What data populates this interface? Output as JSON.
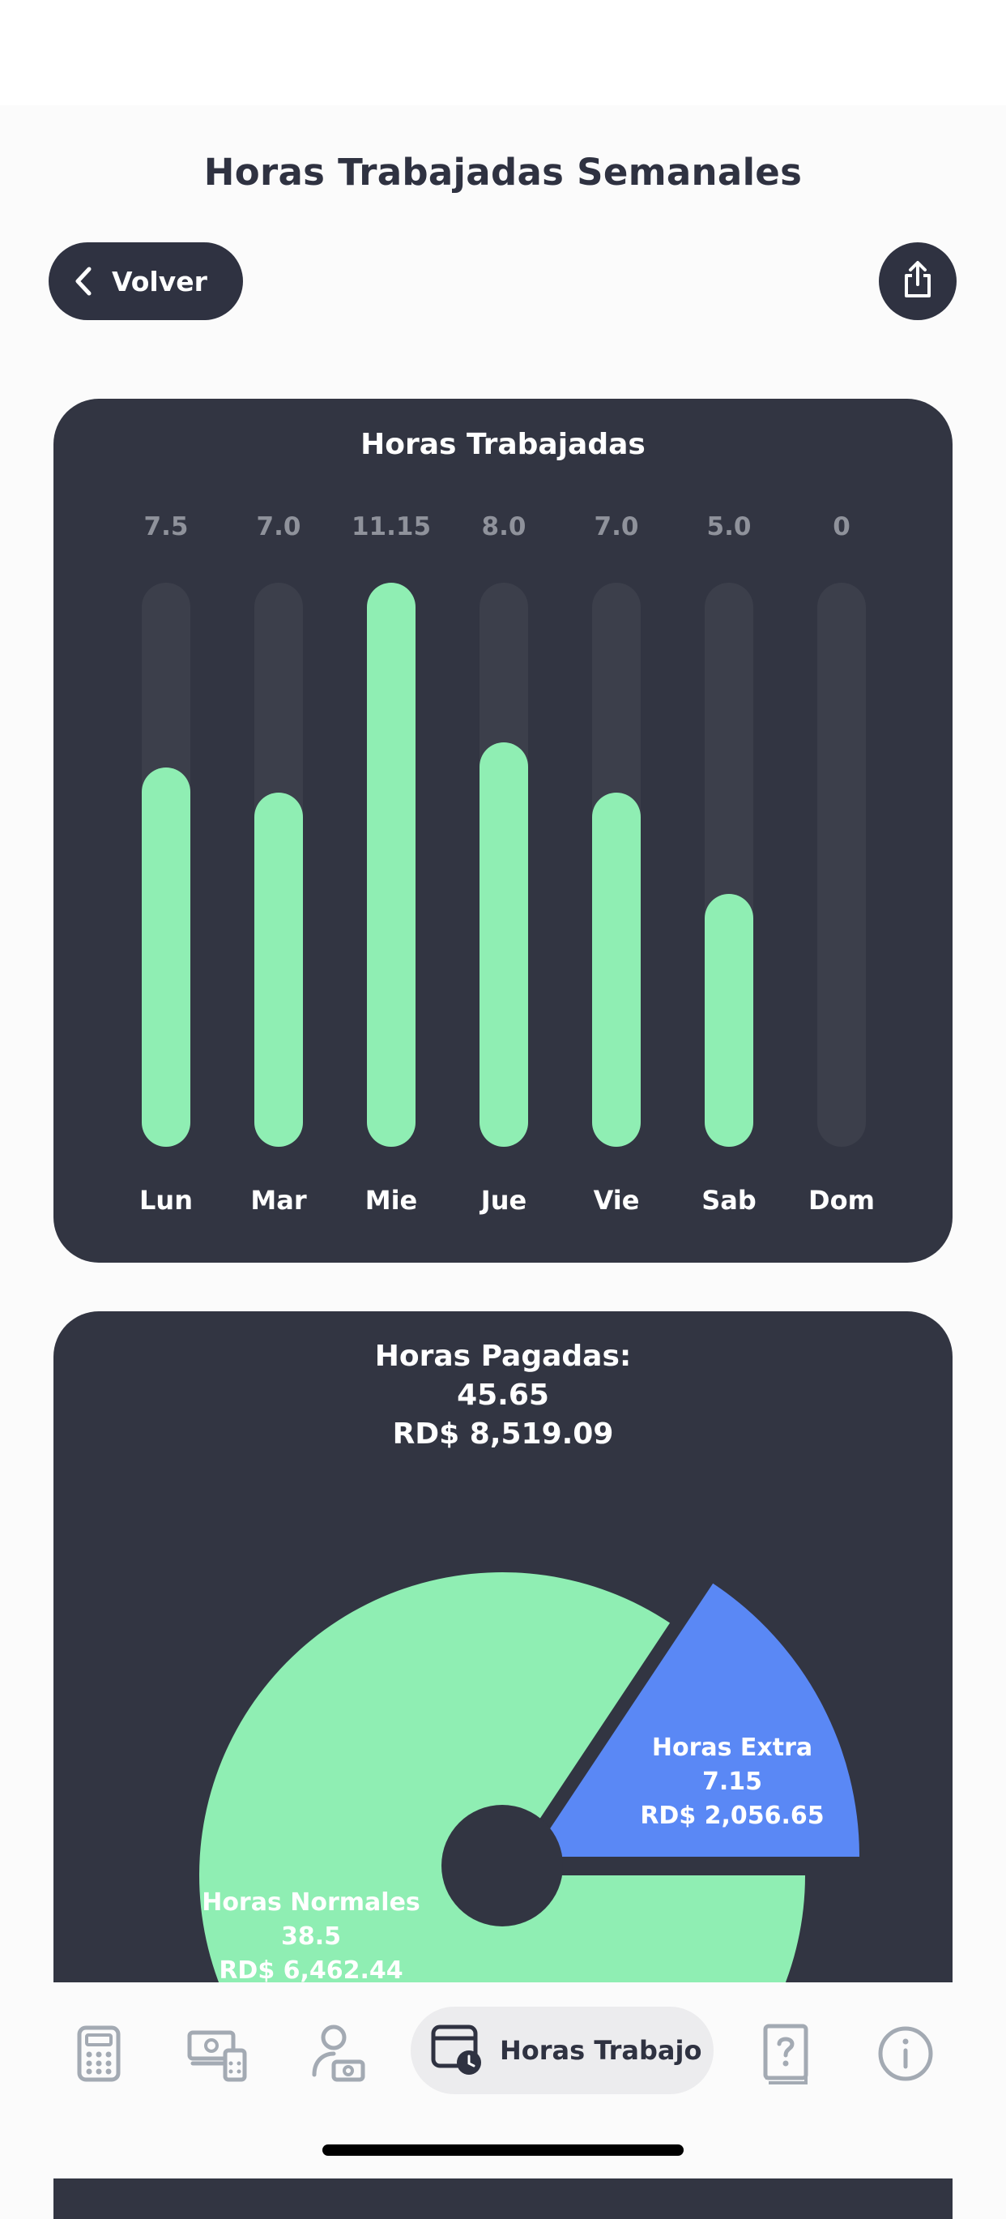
{
  "header": {
    "title": "Horas Trabajadas Semanales",
    "back_label": "Volver",
    "back_icon": "chevron-left-icon",
    "share_icon": "share-icon"
  },
  "colors": {
    "card_bg": "#323542",
    "bar_fill": "#8feeb3",
    "bar_track": "#3c3f4b",
    "extra": "#5a88f5",
    "text_dark": "#2f3241"
  },
  "bars_card": {
    "title": "Horas Trabajadas"
  },
  "chart_data": [
    {
      "type": "bar",
      "title": "Horas Trabajadas",
      "categories": [
        "Lun",
        "Mar",
        "Mie",
        "Jue",
        "Vie",
        "Sab",
        "Dom"
      ],
      "values": [
        7.5,
        7.0,
        11.15,
        8.0,
        7.0,
        5.0,
        0
      ],
      "value_labels": [
        "7.5",
        "7.0",
        "11.15",
        "8.0",
        "7.0",
        "5.0",
        "0"
      ],
      "ylim": [
        0,
        11.15
      ]
    },
    {
      "type": "pie",
      "title": "Horas Pagadas:",
      "total_hours": "45.65",
      "total_amount": "RD$ 8,519.09",
      "slices": [
        {
          "name": "Horas Normales",
          "hours": "38.5",
          "amount": "RD$ 6,462.44",
          "value": 38.5,
          "color": "#8feeb3"
        },
        {
          "name": "Horas Extra",
          "hours": "7.15",
          "amount": "RD$ 2,056.65",
          "value": 7.15,
          "color": "#5a88f5"
        }
      ]
    }
  ],
  "tabbar": {
    "items": [
      {
        "icon": "calculator-icon"
      },
      {
        "icon": "money-calculator-icon"
      },
      {
        "icon": "user-money-icon"
      },
      {
        "icon": "calendar-clock-icon",
        "label": "Horas Trabajo",
        "active": true
      },
      {
        "icon": "help-book-icon"
      },
      {
        "icon": "info-icon"
      }
    ]
  }
}
